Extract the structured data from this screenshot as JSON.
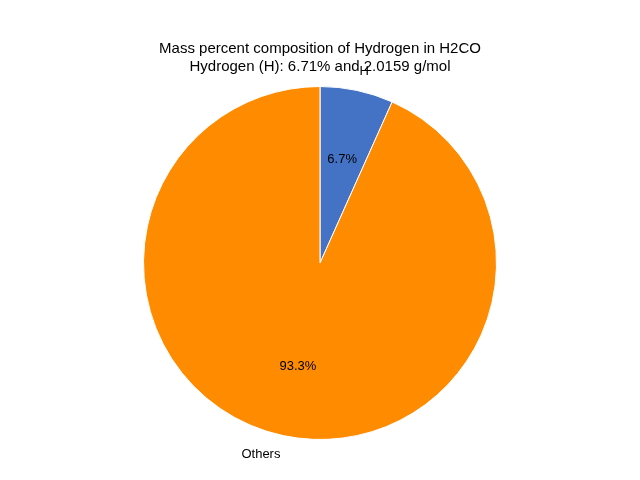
{
  "chart_data": {
    "type": "pie",
    "title": [
      "Mass percent composition of Hydrogen in H2CO",
      "Hydrogen (H): 6.71% and 2.0159 g/mol"
    ],
    "categories": [
      "H",
      "Others"
    ],
    "values": [
      6.7,
      93.3
    ],
    "value_labels": [
      "6.7%",
      "93.3%"
    ],
    "colors": [
      "#4472C4",
      "#FF8C00"
    ],
    "data_labels": true
  }
}
